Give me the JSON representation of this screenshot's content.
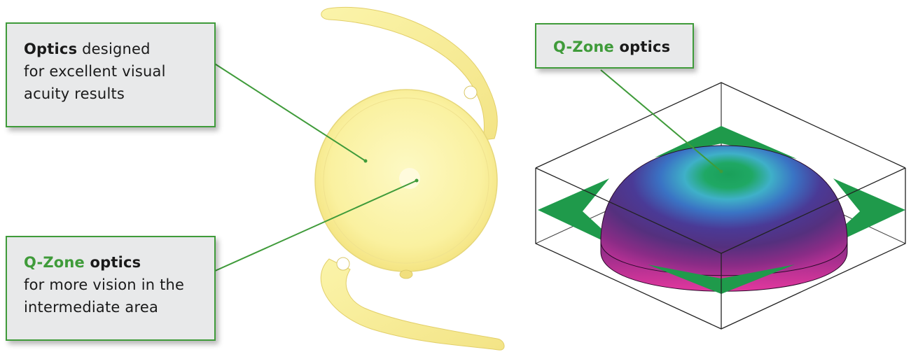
{
  "callouts": {
    "optics": {
      "bold": "Optics",
      "rest": " designed",
      "lines": [
        "for excellent visual",
        "acuity results"
      ]
    },
    "qzone_left": {
      "green": "Q-Zone",
      "bold": " optics",
      "lines": [
        "for more vision in the",
        "intermediate area"
      ]
    },
    "qzone_right": {
      "green": "Q-Zone",
      "bold": " optics"
    }
  },
  "colors": {
    "accent_green": "#3f9b3a",
    "box_fill": "#e8e9ea",
    "lens_yellow": "#faf2a0",
    "arrow_green": "#1f9a4b"
  }
}
